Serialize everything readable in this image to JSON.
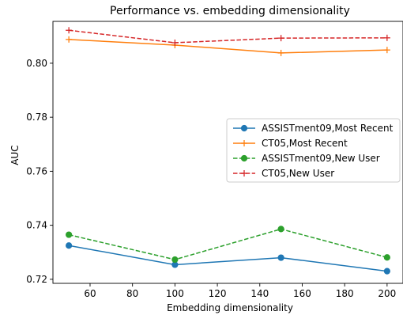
{
  "chart_data": {
    "type": "line",
    "title": "Performance vs. embedding dimensionality",
    "xlabel": "Embedding dimensionality",
    "ylabel": "AUC",
    "xlim": [
      42.5,
      207.5
    ],
    "ylim": [
      0.7185,
      0.8155
    ],
    "xticks": [
      60,
      80,
      100,
      120,
      140,
      160,
      180,
      200
    ],
    "yticks": [
      0.72,
      0.74,
      0.76,
      0.78,
      0.8
    ],
    "ytick_labels": [
      "0.72",
      "0.74",
      "0.76",
      "0.78",
      "0.80"
    ],
    "legend_position": "center-right",
    "grid": false,
    "x": [
      50,
      100,
      150,
      200
    ],
    "series": [
      {
        "name": "ASSISTment09,Most Recent",
        "values": [
          0.7325,
          0.7254,
          0.728,
          0.723
        ],
        "color": "#1f77b4",
        "linestyle": "solid",
        "marker": "circle"
      },
      {
        "name": "CT05,Most Recent",
        "values": [
          0.8088,
          0.8067,
          0.8038,
          0.8049
        ],
        "color": "#ff7f0e",
        "linestyle": "solid",
        "marker": "plus"
      },
      {
        "name": "ASSISTment09,New User",
        "values": [
          0.7365,
          0.7273,
          0.7386,
          0.7281
        ],
        "color": "#2ca02c",
        "linestyle": "dashed",
        "marker": "circle"
      },
      {
        "name": "CT05,New User",
        "values": [
          0.8122,
          0.8076,
          0.8093,
          0.8094
        ],
        "color": "#d62728",
        "linestyle": "dashed",
        "marker": "plus"
      }
    ]
  }
}
